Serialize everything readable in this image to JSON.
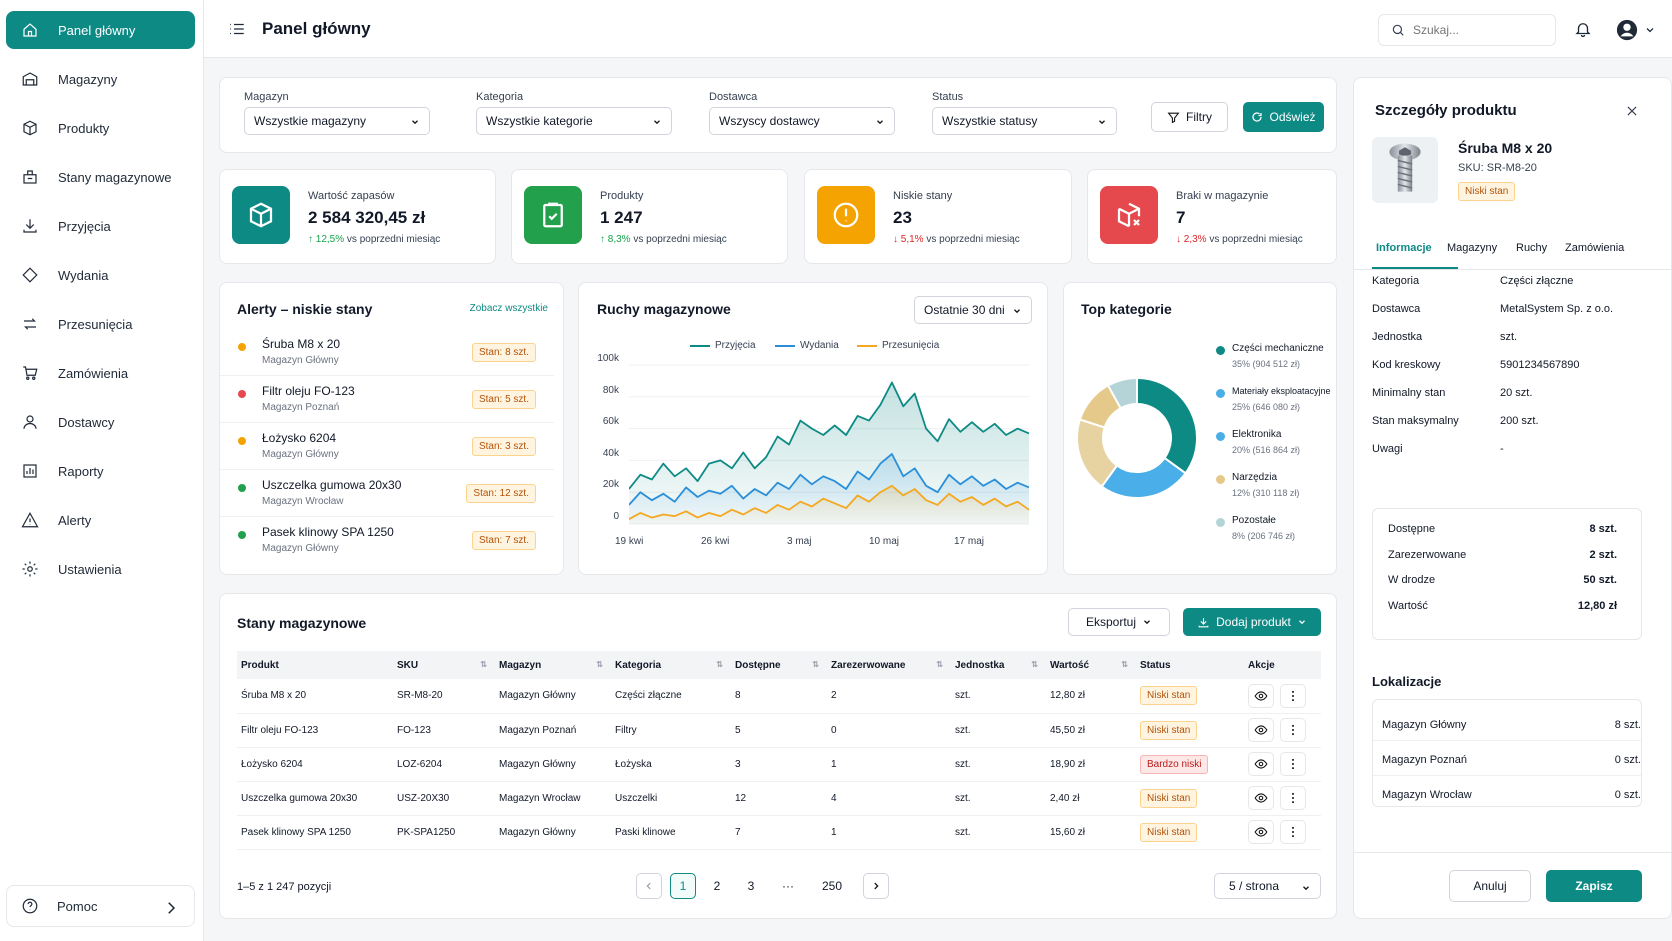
{
  "sidebar": {
    "items": [
      {
        "label": "Panel główny",
        "icon": "home-icon",
        "active": true
      },
      {
        "label": "Magazyny",
        "icon": "warehouse-icon"
      },
      {
        "label": "Produkty",
        "icon": "box-icon"
      },
      {
        "label": "Stany magazynowe",
        "icon": "inventory-icon"
      },
      {
        "label": "Przyjęcia",
        "icon": "inbound-icon"
      },
      {
        "label": "Wydania",
        "icon": "outbound-icon"
      },
      {
        "label": "Przesunięcia",
        "icon": "transfer-icon"
      },
      {
        "label": "Zamówienia",
        "icon": "cart-icon"
      },
      {
        "label": "Dostawcy",
        "icon": "user-icon"
      },
      {
        "label": "Raporty",
        "icon": "report-icon"
      },
      {
        "label": "Alerty",
        "icon": "alert-icon"
      },
      {
        "label": "Ustawienia",
        "icon": "gear-icon"
      }
    ],
    "help": "Pomoc"
  },
  "header": {
    "title": "Panel główny",
    "search_placeholder": "Szukaj..."
  },
  "filters": {
    "magazyn": {
      "label": "Magazyn",
      "value": "Wszystkie magazyny"
    },
    "kategoria": {
      "label": "Kategoria",
      "value": "Wszystkie kategorie"
    },
    "dostawca": {
      "label": "Dostawca",
      "value": "Wszyscy dostawcy"
    },
    "status": {
      "label": "Status",
      "value": "Wszystkie statusy"
    },
    "filters_button": "Filtry",
    "refresh_button": "Odśwież"
  },
  "stats": [
    {
      "label": "Wartość zapasów",
      "value": "2 584 320,45 zł",
      "change": "12,5%",
      "direction": "up",
      "note": "vs poprzedni miesiąc",
      "color": "#0e8a85"
    },
    {
      "label": "Produkty",
      "value": "1 247",
      "change": "8,3%",
      "direction": "up",
      "note": "vs poprzedni miesiąc",
      "color": "#22a04b"
    },
    {
      "label": "Niskie stany",
      "value": "23",
      "change": "5,1%",
      "direction": "down",
      "note": "vs poprzedni miesiąc",
      "color": "#f5a300"
    },
    {
      "label": "Braki w magazynie",
      "value": "7",
      "change": "2,3%",
      "direction": "down",
      "note": "vs poprzedni miesiąc",
      "color": "#e5484d"
    }
  ],
  "alerts": {
    "title": "Alerty – niskie stany",
    "link": "Zobacz wszystkie",
    "items": [
      {
        "name": "Śruba M8 x 20",
        "location": "Magazyn Główny",
        "stock": "Stan: 8 szt.",
        "color": "#f5a300"
      },
      {
        "name": "Filtr oleju FO-123",
        "location": "Magazyn Poznań",
        "stock": "Stan: 5 szt.",
        "color": "#e5484d"
      },
      {
        "name": "Łożysko 6204",
        "location": "Magazyn Główny",
        "stock": "Stan: 3 szt.",
        "color": "#f5a300"
      },
      {
        "name": "Uszczelka gumowa 20x30",
        "location": "Magazyn Wrocław",
        "stock": "Stan: 12 szt.",
        "color": "#22a04b"
      },
      {
        "name": "Pasek klinowy SPA 1250",
        "location": "Magazyn Główny",
        "stock": "Stan: 7 szt.",
        "color": "#22a04b"
      }
    ]
  },
  "movements": {
    "title": "Ruchy magazynowe",
    "period": "Ostatnie 30 dni",
    "chart_data": {
      "type": "line",
      "x_ticks": [
        "19 kwi",
        "26 kwi",
        "3 maj",
        "10 maj",
        "17 maj"
      ],
      "y_ticks": [
        "100k",
        "80k",
        "60k",
        "40k",
        "20k",
        "0"
      ],
      "ylim": [
        0,
        100000
      ],
      "series": [
        {
          "name": "Przyjęcia",
          "color": "#0e8a85",
          "values": [
            22000,
            31000,
            28000,
            38000,
            30000,
            35000,
            27000,
            38000,
            40000,
            35000,
            45000,
            35000,
            42000,
            55000,
            50000,
            65000,
            60000,
            56000,
            62000,
            56000,
            68000,
            65000,
            75000,
            89000,
            74000,
            82000,
            60000,
            52000,
            66000,
            58000,
            64000,
            58000,
            63000,
            56000,
            60000,
            57000
          ]
        },
        {
          "name": "Wydania",
          "color": "#2a8fd8",
          "values": [
            12000,
            20000,
            15000,
            19000,
            14000,
            23000,
            17000,
            21000,
            19000,
            24000,
            16000,
            22000,
            18000,
            26000,
            22000,
            31000,
            25000,
            30000,
            27000,
            22000,
            33000,
            28000,
            38000,
            44000,
            30000,
            35000,
            24000,
            20000,
            31000,
            25000,
            30000,
            24000,
            28000,
            22000,
            26000,
            23000
          ]
        },
        {
          "name": "Przesunięcia",
          "color": "#f4a820",
          "values": [
            3000,
            7000,
            4000,
            6000,
            5000,
            8000,
            4000,
            7000,
            5000,
            9000,
            6000,
            10000,
            7000,
            12000,
            9000,
            14000,
            11000,
            16000,
            13000,
            10000,
            18000,
            14000,
            20000,
            24000,
            18000,
            22000,
            15000,
            12000,
            19000,
            14000,
            17000,
            12000,
            16000,
            11000,
            14000,
            9000
          ]
        }
      ]
    }
  },
  "categories": {
    "title": "Top kategorie",
    "chart_data": {
      "type": "pie",
      "slices": [
        {
          "name": "Części mechaniczne",
          "percent": 35,
          "value": "904 512 zł",
          "label": "35% (904 512 zł)",
          "color": "#0e8a85"
        },
        {
          "name": "Materiały eksploatacyjne",
          "percent": 25,
          "value": "646 080 zł",
          "label": "25% (646 080 zł)",
          "color": "#4aaee8"
        },
        {
          "name": "Elektronika",
          "percent": 20,
          "value": "516 864 zł",
          "label": "20% (516 864 zł)",
          "color": "#e7d3a2"
        },
        {
          "name": "Narzędzia",
          "percent": 12,
          "value": "310 118 zł",
          "label": "12% (310 118 zł)",
          "color": "#e5c98a"
        },
        {
          "name": "Pozostałe",
          "percent": 8,
          "value": "206 746 zł",
          "label": "8% (206 746 zł)",
          "color": "#b5d4d8"
        }
      ]
    }
  },
  "inventory": {
    "title": "Stany magazynowe",
    "export": "Eksportuj",
    "add": "Dodaj produkt",
    "columns": [
      "Produkt",
      "SKU",
      "Magazyn",
      "Kategoria",
      "Dostępne",
      "Zarezerwowane",
      "Jednostka",
      "Wartość",
      "Status",
      "Akcje"
    ],
    "rows": [
      {
        "product": "Śruba M8 x 20",
        "sku": "SR-M8-20",
        "warehouse": "Magazyn Główny",
        "category": "Części złączne",
        "available": "8",
        "reserved": "2",
        "unit": "szt.",
        "value": "12,80 zł",
        "status": "Niski stan",
        "severity": "low"
      },
      {
        "product": "Filtr oleju FO-123",
        "sku": "FO-123",
        "warehouse": "Magazyn Poznań",
        "category": "Filtry",
        "available": "5",
        "reserved": "0",
        "unit": "szt.",
        "value": "45,50 zł",
        "status": "Niski stan",
        "severity": "low"
      },
      {
        "product": "Łożysko 6204",
        "sku": "LOZ-6204",
        "warehouse": "Magazyn Główny",
        "category": "Łożyska",
        "available": "3",
        "reserved": "1",
        "unit": "szt.",
        "value": "18,90 zł",
        "status": "Bardzo niski",
        "severity": "critical"
      },
      {
        "product": "Uszczelka gumowa 20x30",
        "sku": "USZ-20X30",
        "warehouse": "Magazyn Wrocław",
        "category": "Uszczelki",
        "available": "12",
        "reserved": "4",
        "unit": "szt.",
        "value": "2,40 zł",
        "status": "Niski stan",
        "severity": "low"
      },
      {
        "product": "Pasek klinowy SPA 1250",
        "sku": "PK-SPA1250",
        "warehouse": "Magazyn Główny",
        "category": "Paski klinowe",
        "available": "7",
        "reserved": "1",
        "unit": "szt.",
        "value": "15,60 zł",
        "status": "Niski stan",
        "severity": "low"
      }
    ],
    "summary": "1–5 z 1 247 pozycji",
    "pages": [
      "1",
      "2",
      "3",
      "···",
      "250"
    ],
    "per_page": "5 / strona"
  },
  "detail": {
    "title": "Szczegóły produktu",
    "name": "Śruba M8 x 20",
    "sku": "SKU: SR-M8-20",
    "badge": "Niski stan",
    "tabs": [
      "Informacje",
      "Magazyny",
      "Ruchy",
      "Zamówienia"
    ],
    "info": [
      {
        "k": "Kategoria",
        "v": "Części złączne"
      },
      {
        "k": "Dostawca",
        "v": "MetalSystem Sp. z o.o."
      },
      {
        "k": "Jednostka",
        "v": "szt."
      },
      {
        "k": "Kod kreskowy",
        "v": "5901234567890"
      },
      {
        "k": "Minimalny stan",
        "v": "20 szt."
      },
      {
        "k": "Stan maksymalny",
        "v": "200 szt."
      },
      {
        "k": "Uwagi",
        "v": "-"
      }
    ],
    "summary": [
      {
        "k": "Dostępne",
        "v": "8 szt."
      },
      {
        "k": "Zarezerwowane",
        "v": "2 szt."
      },
      {
        "k": "W drodze",
        "v": "50 szt."
      },
      {
        "k": "Wartość",
        "v": "12,80 zł"
      }
    ],
    "locations_title": "Lokalizacje",
    "locations": [
      {
        "k": "Magazyn Główny",
        "v": "8 szt."
      },
      {
        "k": "Magazyn Poznań",
        "v": "0 szt."
      },
      {
        "k": "Magazyn Wrocław",
        "v": "0 szt."
      }
    ],
    "cancel": "Anuluj",
    "save": "Zapisz"
  }
}
